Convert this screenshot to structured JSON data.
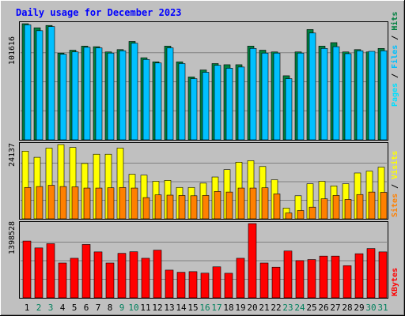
{
  "title": "Daily usage for December 2023",
  "colors": {
    "background": "#c0c0c0",
    "title": "#0000ff",
    "hits": "#008040",
    "files": "#00c0ff",
    "pages": "#00e0ff",
    "visits": "#ffff00",
    "sites": "#ff8000",
    "kbytes": "#ff0000",
    "weekend_day": "#00805c",
    "weekday": "#000000"
  },
  "chart_data": [
    {
      "type": "bar",
      "panel": "hits-files-pages",
      "max_label": "101616",
      "side_labels": [
        "Hits",
        "Files",
        "Pages"
      ],
      "categories": [
        "1",
        "2",
        "3",
        "4",
        "5",
        "6",
        "7",
        "8",
        "9",
        "10",
        "11",
        "12",
        "13",
        "14",
        "15",
        "16",
        "17",
        "18",
        "19",
        "20",
        "21",
        "22",
        "23",
        "24",
        "25",
        "26",
        "27",
        "28",
        "29",
        "30",
        "31"
      ],
      "series": [
        {
          "name": "Hits",
          "values": [
            101616,
            98055,
            100091,
            75905,
            78450,
            82013,
            81504,
            76923,
            78959,
            86085,
            71834,
            68271,
            82013,
            68271,
            55042,
            61149,
            66744,
            65727,
            65727,
            82013,
            78450,
            76923,
            56060,
            76923,
            96528,
            82013,
            85067,
            76923,
            78959,
            76923,
            79976
          ]
        },
        {
          "name": "Files",
          "values": [
            100600,
            95510,
            99074,
            74887,
            76923,
            80994,
            80485,
            75905,
            77941,
            84559,
            70307,
            67253,
            80485,
            66744,
            53515,
            59113,
            65218,
            62676,
            63694,
            79976,
            75905,
            75905,
            53515,
            75905,
            93475,
            79976,
            81504,
            75397,
            77941,
            77432,
            77941
          ]
        },
        {
          "name": "Pages",
          "values": [
            58600,
            55000,
            57200,
            43700,
            45200,
            46300,
            46800,
            44500,
            45500,
            48500,
            41000,
            39200,
            46200,
            39000,
            32500,
            35600,
            38500,
            37300,
            37700,
            46800,
            45100,
            44500,
            33000,
            45100,
            55000,
            47200,
            48900,
            45200,
            45400,
            45100,
            45600
          ]
        }
      ]
    },
    {
      "type": "bar",
      "panel": "visits-sites",
      "max_label": "24137",
      "side_labels": [
        "Visits",
        "Sites"
      ],
      "categories": [
        "1",
        "2",
        "3",
        "4",
        "5",
        "6",
        "7",
        "8",
        "9",
        "10",
        "11",
        "12",
        "13",
        "14",
        "15",
        "16",
        "17",
        "18",
        "19",
        "20",
        "21",
        "22",
        "23",
        "24",
        "25",
        "26",
        "27",
        "28",
        "29",
        "30",
        "31"
      ],
      "series": [
        {
          "name": "Visits",
          "values": [
            22000,
            20000,
            23000,
            24137,
            23200,
            18000,
            21000,
            21000,
            23000,
            14500,
            14200,
            12200,
            12500,
            10200,
            10200,
            11600,
            13600,
            16000,
            18400,
            18900,
            17000,
            12700,
            3500,
            7500,
            11400,
            12200,
            10700,
            11400,
            14900,
            15500,
            16800
          ]
        },
        {
          "name": "Sites",
          "values": [
            10200,
            10500,
            10900,
            10500,
            10400,
            10000,
            10000,
            10100,
            10200,
            10000,
            6900,
            7800,
            7700,
            7600,
            7500,
            7600,
            8900,
            8700,
            10000,
            10000,
            10100,
            8100,
            1900,
            2700,
            3800,
            6500,
            7600,
            6300,
            7900,
            8700,
            8600
          ]
        }
      ]
    },
    {
      "type": "bar",
      "panel": "kbytes",
      "max_label": "1398528",
      "side_labels": [
        "KBytes"
      ],
      "categories": [
        "1",
        "2",
        "3",
        "4",
        "5",
        "6",
        "7",
        "8",
        "9",
        "10",
        "11",
        "12",
        "13",
        "14",
        "15",
        "16",
        "17",
        "18",
        "19",
        "20",
        "21",
        "22",
        "23",
        "24",
        "25",
        "26",
        "27",
        "28",
        "29",
        "30",
        "31"
      ],
      "series": [
        {
          "name": "KBytes",
          "values": [
            1070000,
            940000,
            1020000,
            655000,
            745000,
            1005000,
            865000,
            655000,
            838000,
            868000,
            745000,
            898000,
            522000,
            481000,
            493000,
            465000,
            584000,
            463000,
            745000,
            1398528,
            655000,
            577000,
            882000,
            701000,
            721000,
            786000,
            786000,
            606000,
            831000,
            928000,
            865000
          ]
        }
      ]
    }
  ],
  "days": [
    {
      "label": "1",
      "weekend": false
    },
    {
      "label": "2",
      "weekend": true
    },
    {
      "label": "3",
      "weekend": true
    },
    {
      "label": "4",
      "weekend": false
    },
    {
      "label": "5",
      "weekend": false
    },
    {
      "label": "6",
      "weekend": false
    },
    {
      "label": "7",
      "weekend": false
    },
    {
      "label": "8",
      "weekend": false
    },
    {
      "label": "9",
      "weekend": true
    },
    {
      "label": "10",
      "weekend": true
    },
    {
      "label": "11",
      "weekend": false
    },
    {
      "label": "12",
      "weekend": false
    },
    {
      "label": "13",
      "weekend": false
    },
    {
      "label": "14",
      "weekend": false
    },
    {
      "label": "15",
      "weekend": false
    },
    {
      "label": "16",
      "weekend": true
    },
    {
      "label": "17",
      "weekend": true
    },
    {
      "label": "18",
      "weekend": false
    },
    {
      "label": "19",
      "weekend": false
    },
    {
      "label": "20",
      "weekend": false
    },
    {
      "label": "21",
      "weekend": false
    },
    {
      "label": "22",
      "weekend": false
    },
    {
      "label": "23",
      "weekend": true
    },
    {
      "label": "24",
      "weekend": true
    },
    {
      "label": "25",
      "weekend": false
    },
    {
      "label": "26",
      "weekend": false
    },
    {
      "label": "27",
      "weekend": false
    },
    {
      "label": "28",
      "weekend": false
    },
    {
      "label": "29",
      "weekend": false
    },
    {
      "label": "30",
      "weekend": true
    },
    {
      "label": "31",
      "weekend": true
    }
  ]
}
